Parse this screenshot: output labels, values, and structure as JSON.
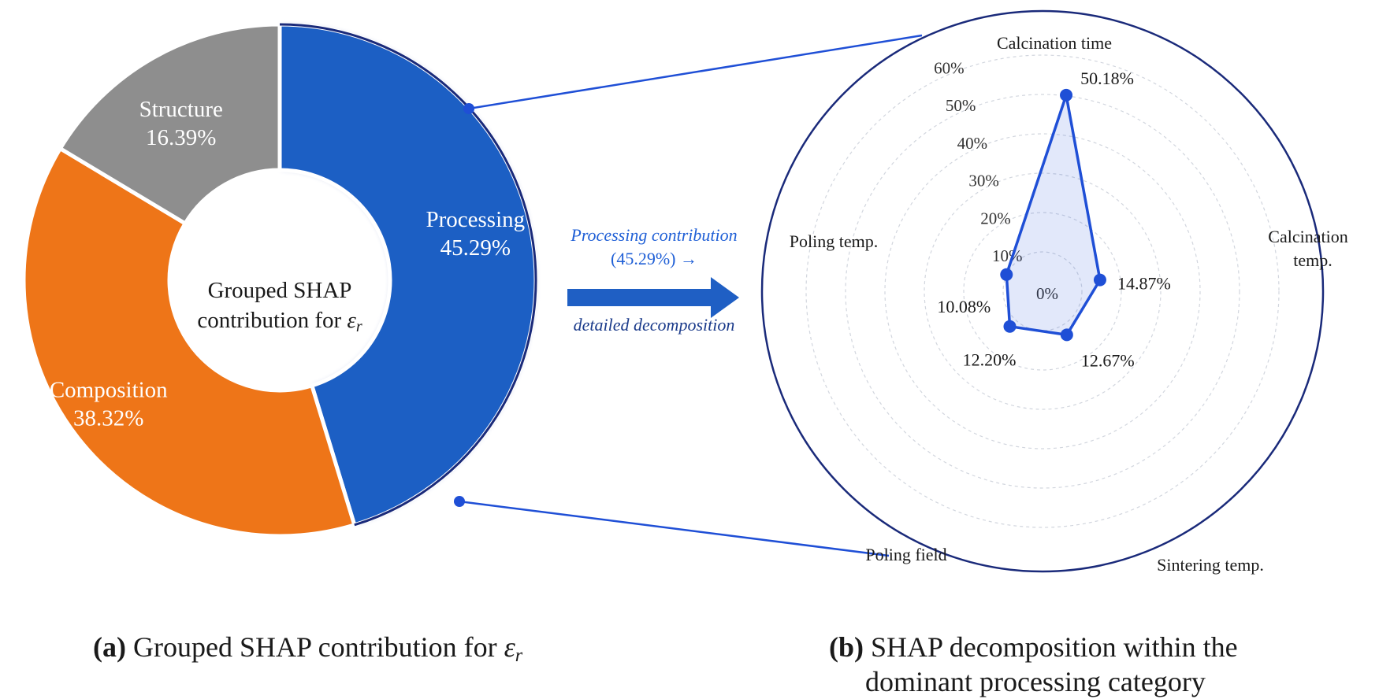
{
  "chart_data": [
    {
      "type": "pie",
      "variant": "donut",
      "center_label_line1": "Grouped SHAP",
      "center_label_line2": "contribution for",
      "center_label_symbol": "ε",
      "center_label_subscript": "r",
      "slices": [
        {
          "label": "Structure",
          "value_text": "16.39%",
          "value": 16.39,
          "color": "#8e8e8e"
        },
        {
          "label": "Processing",
          "value_text": "45.29%",
          "value": 45.29,
          "color": "#1f5fc4"
        },
        {
          "label": "Composition",
          "value_text": "38.32%",
          "value": 38.32,
          "color": "#ee7518"
        }
      ]
    },
    {
      "type": "radar",
      "r_ticks": [
        "0%",
        "10%",
        "20%",
        "30%",
        "40%",
        "50%",
        "60%"
      ],
      "r_max": 60,
      "fill_color": "#1f4fd6",
      "axes": [
        {
          "label": "Calcination time",
          "value": 50.18,
          "value_text": "50.18%"
        },
        {
          "label": "Calcination temp.",
          "value": 14.87,
          "value_text": "14.87%"
        },
        {
          "label": "Sintering temp.",
          "value": 12.67,
          "value_text": "12.67%"
        },
        {
          "label": "Poling field",
          "value": 12.2,
          "value_text": "12.20%"
        },
        {
          "label": "Poling temp.",
          "value": 10.08,
          "value_text": "10.08%"
        }
      ]
    }
  ],
  "flow": {
    "line1": "Processing contribution",
    "line2": "(45.29%) →",
    "line3": "detailed decomposition"
  },
  "captions": {
    "a_tag": "(a)",
    "a_text": "Grouped SHAP contribution for",
    "a_symbol": "ε",
    "a_subscript": "r",
    "b_tag": "(b)",
    "b_text_line1": "SHAP decomposition within the",
    "b_text_line2": "dominant processing category"
  },
  "colors": {
    "accent": "#1f4fd6",
    "navy": "#1a2a7a"
  }
}
